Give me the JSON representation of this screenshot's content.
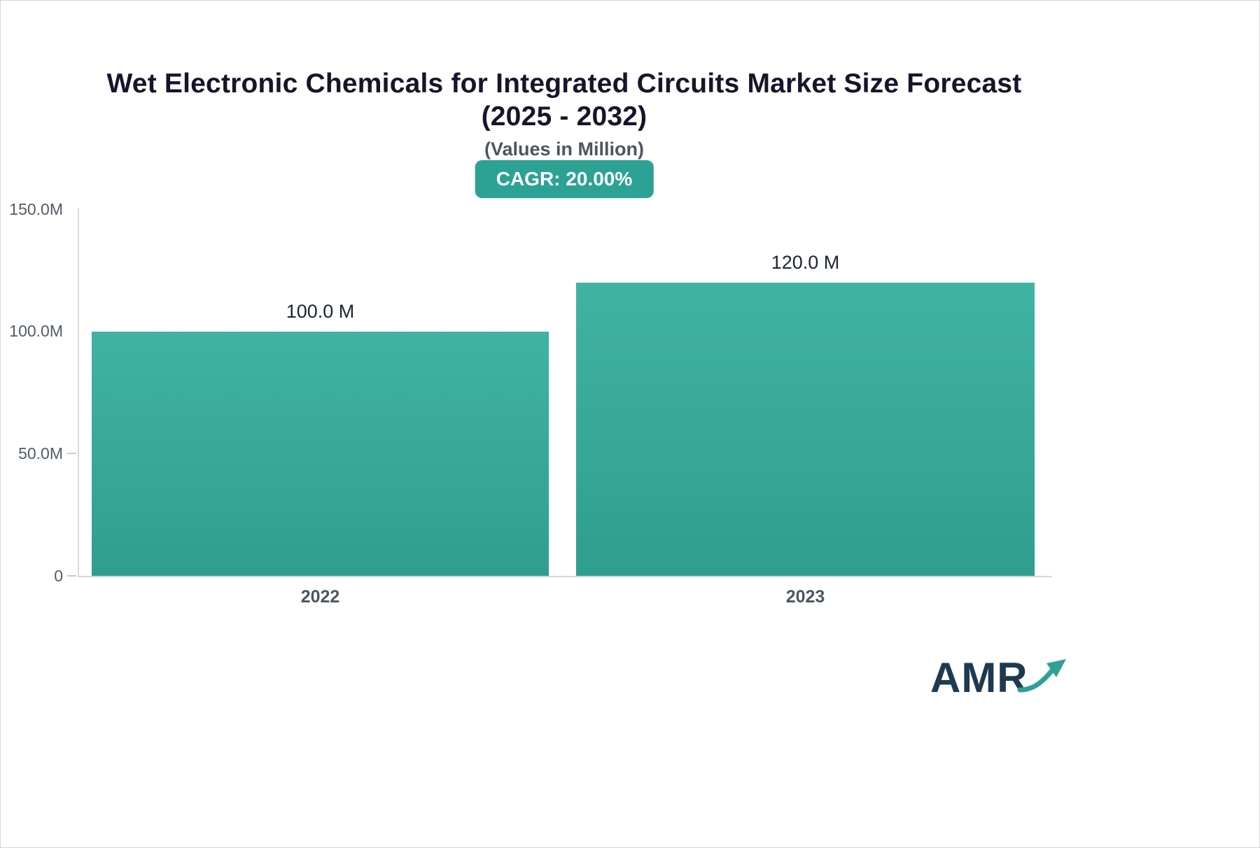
{
  "page": {
    "title": "Wet Electronic Chemicals for Integrated Circuits Market Size Forecast (2025 - 2032)",
    "subtitle": "(Values in Million)",
    "cagr_badge": "CAGR: 20.00%",
    "brand": "AMR"
  },
  "colors": {
    "bar_top": "#41b3a3",
    "bar_bottom": "#2f9e8e",
    "badge_background": "#2ba294",
    "title_text": "#15152b",
    "axis_text": "#525b66",
    "brand_text": "#1e3a50",
    "brand_arrow": "#2fa093"
  },
  "chart_data": {
    "type": "bar",
    "title": "Wet Electronic Chemicals for Integrated Circuits Market Size Forecast (2025 - 2032)",
    "subtitle": "(Values in Million)",
    "cagr": "20.00%",
    "unit": "Million",
    "categories": [
      "2022",
      "2023"
    ],
    "values": [
      100.0,
      120.0
    ],
    "value_labels": [
      "100.0 M",
      "120.0 M"
    ],
    "ylim": [
      0,
      150
    ],
    "yticks": [
      {
        "label": "150.0M",
        "value": 150
      },
      {
        "label": "100.0M",
        "value": 100
      },
      {
        "label": "50.0M",
        "value": 50
      },
      {
        "label": "0",
        "value": 0
      }
    ],
    "grid": false,
    "legend": false
  }
}
